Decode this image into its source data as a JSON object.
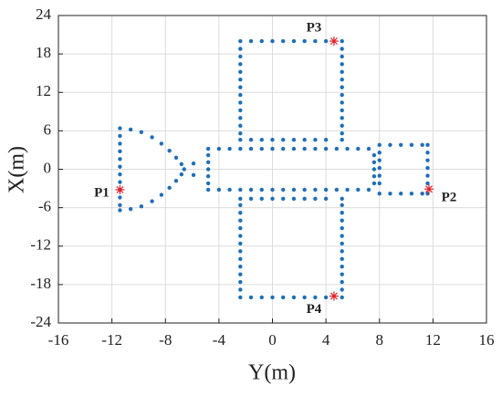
{
  "chart_data": {
    "type": "scatter",
    "xlabel": "Y(m)",
    "ylabel": "X(m)",
    "xlim": [
      -16,
      16
    ],
    "xticks": [
      -16,
      -12,
      -8,
      -4,
      0,
      4,
      8,
      12,
      16
    ],
    "ylim": [
      -24,
      24
    ],
    "yticks": [
      -24,
      -18,
      -12,
      -6,
      0,
      6,
      12,
      18,
      24
    ],
    "grid": true,
    "series": [
      {
        "color": "#1f6fb8",
        "marker": "dot",
        "x": [
          -2.4,
          -1.6,
          -0.8,
          0,
          0.8,
          1.6,
          2.4,
          3.2,
          4.0,
          5.2,
          -2.4,
          -2.4,
          -2.4,
          -2.4,
          -2.4,
          -2.4,
          -2.4,
          -2.4,
          -2.4,
          -2.4,
          -2.4,
          -2.4,
          -2.4,
          5.2,
          5.2,
          5.2,
          5.2,
          5.2,
          5.2,
          5.2,
          5.2,
          5.2,
          5.2,
          5.2,
          5.2,
          5.2,
          -1.6,
          -0.8,
          0,
          0.8,
          1.6,
          2.4,
          3.2,
          4.0,
          -2.4,
          -1.6,
          -0.8,
          0,
          0.8,
          1.6,
          2.4,
          3.2,
          4.0,
          5.2,
          -2.4,
          -2.4,
          -2.4,
          -2.4,
          -2.4,
          -2.4,
          -2.4,
          -2.4,
          -2.4,
          -2.4,
          -2.4,
          -2.4,
          -2.4,
          5.2,
          5.2,
          5.2,
          5.2,
          5.2,
          5.2,
          5.2,
          5.2,
          5.2,
          5.2,
          5.2,
          5.2,
          5.2,
          -1.6,
          -0.8,
          0,
          0.8,
          1.6,
          2.4,
          3.2,
          4.0,
          -4.8,
          -4.0,
          -3.2,
          -2.4,
          -1.6,
          -0.8,
          0,
          0.8,
          1.6,
          2.4,
          3.2,
          4.0,
          4.8,
          5.6,
          6.4,
          7.2,
          -4.8,
          -4.0,
          -3.2,
          -2.4,
          -1.6,
          -0.8,
          0,
          0.8,
          1.6,
          2.4,
          3.2,
          4.0,
          4.8,
          5.6,
          6.4,
          7.2,
          -4.8,
          -4.8,
          -4.8,
          -4.8,
          -4.8,
          7.6,
          7.6,
          7.6,
          7.6,
          7.6,
          8.0,
          8.8,
          9.6,
          10.4,
          11.2,
          11.6,
          11.6,
          11.6,
          11.6,
          11.6,
          11.6,
          11.6,
          8.0,
          8.0,
          8.0,
          8.0,
          8.0,
          8.0,
          8.8,
          9.6,
          10.4,
          11.2,
          -11.4,
          -11.4,
          -11.4,
          -11.4,
          -11.4,
          -11.4,
          -11.4,
          -11.4,
          -11.4,
          -11.4,
          -11.4,
          -11.4,
          -10.6,
          -9.8,
          -9.0,
          -8.3,
          -7.7,
          -7.2,
          -6.8,
          -6.6,
          -10.6,
          -9.8,
          -9.0,
          -8.3,
          -7.7,
          -7.2,
          -6.8,
          -5.9,
          -5.9
        ],
        "y": [
          20,
          20,
          20,
          20,
          20,
          20,
          20,
          20,
          20,
          20,
          18.8,
          17.6,
          16.4,
          15.2,
          14,
          12.8,
          11.6,
          10.4,
          9.2,
          8,
          6.8,
          5.6,
          4.6,
          18.8,
          17.6,
          16.4,
          15.2,
          14,
          12.8,
          11.6,
          10.4,
          9.2,
          8,
          6.8,
          5.6,
          4.6,
          4.6,
          4.6,
          4.6,
          4.6,
          4.6,
          4.6,
          4.6,
          4.6,
          -20,
          -20,
          -20,
          -20,
          -20,
          -20,
          -20,
          -20,
          -20,
          -20,
          -18.8,
          -17.6,
          -16.4,
          -15.2,
          -14,
          -12.8,
          -11.6,
          -10.4,
          -9.2,
          -8,
          -6.8,
          -5.6,
          -4.6,
          -18.8,
          -17.6,
          -16.4,
          -15.2,
          -14,
          -12.8,
          -11.6,
          -10.4,
          -9.2,
          -8,
          -6.8,
          -5.6,
          -4.6,
          -4.6,
          -4.6,
          -4.6,
          -4.6,
          -4.6,
          -4.6,
          -4.6,
          -4.6,
          3.2,
          3.2,
          3.2,
          3.2,
          3.2,
          3.2,
          3.2,
          3.2,
          3.2,
          3.2,
          3.2,
          3.2,
          3.2,
          3.2,
          3.2,
          3.2,
          -3.2,
          -3.2,
          -3.2,
          -3.2,
          -3.2,
          -3.2,
          -3.2,
          -3.2,
          -3.2,
          -3.2,
          -3.2,
          -3.2,
          -3.2,
          -3.2,
          -3.2,
          -3.2,
          -2.2,
          -1.1,
          0,
          1.1,
          2.2,
          -2.2,
          -1.1,
          0,
          1.1,
          2.2,
          3.8,
          3.8,
          3.8,
          3.8,
          3.8,
          3.8,
          2.6,
          1.4,
          0.2,
          -1.0,
          -2.2,
          -3.8,
          2.6,
          1.4,
          0.2,
          -1.0,
          -2.2,
          -3.8,
          -3.8,
          -3.8,
          -3.8,
          -3.8,
          6.4,
          5.2,
          4.0,
          2.8,
          1.6,
          0.4,
          -0.8,
          -2.0,
          -3.2,
          -4.4,
          -5.6,
          -6.4,
          6.2,
          5.8,
          5.0,
          4.0,
          2.9,
          1.8,
          0.8,
          0,
          -6.2,
          -5.8,
          -5.0,
          -4.0,
          -2.9,
          -1.8,
          -0.8,
          0.9,
          -0.9
        ]
      },
      {
        "color": "#e0202a",
        "marker": "star",
        "x": [
          -11.4,
          11.7,
          4.6,
          4.6
        ],
        "y": [
          -3.2,
          -3.1,
          20,
          -19.8
        ],
        "labels": [
          "P1",
          "P2",
          "P3",
          "P4"
        ]
      }
    ]
  }
}
